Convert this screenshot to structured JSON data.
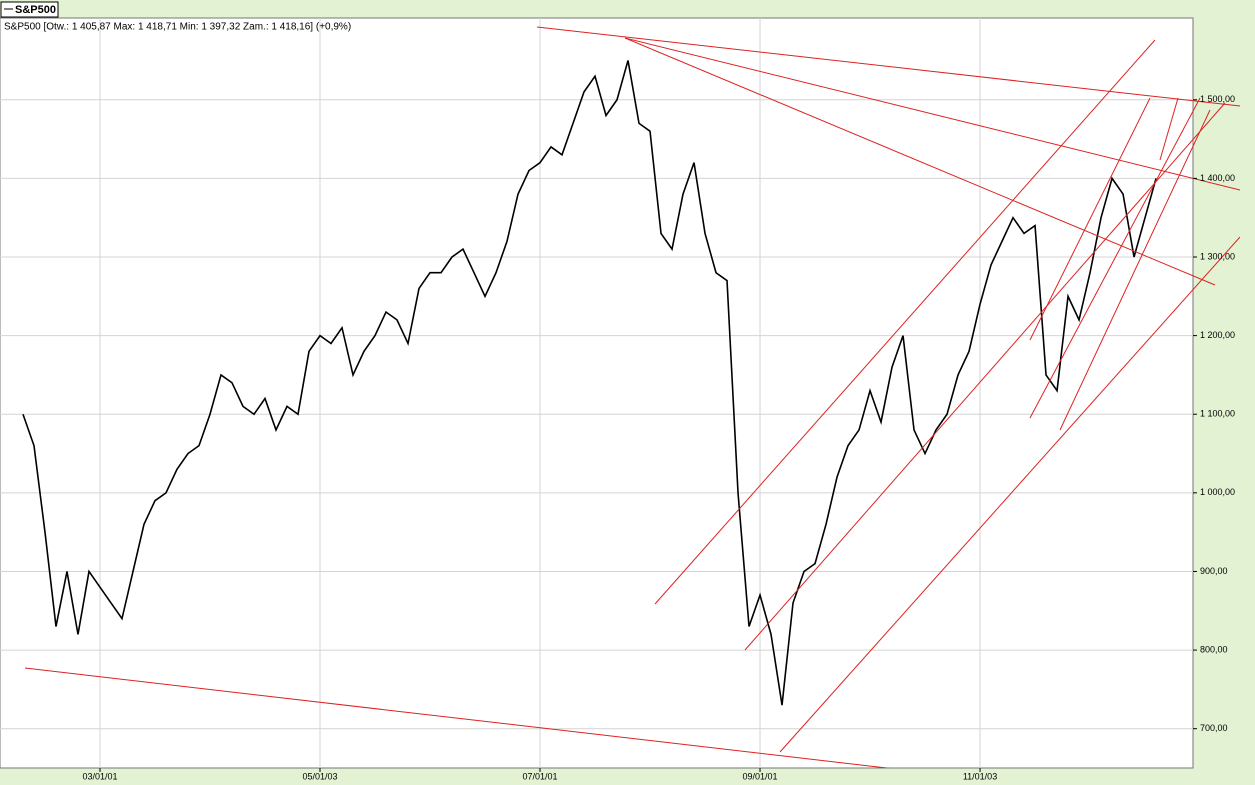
{
  "chart_data": {
    "type": "line",
    "legend": "S&P500",
    "subtitle": "S&P500 [Otw.: 1 405,87  Max: 1 418,71  Min: 1 397,32  Zam.: 1 418,16] (+0,9%)",
    "color": "#000000",
    "grid": true,
    "values": [
      1100,
      1060,
      950,
      830,
      900,
      820,
      900,
      880,
      860,
      840,
      900,
      960,
      990,
      1000,
      1030,
      1050,
      1060,
      1100,
      1150,
      1140,
      1110,
      1100,
      1120,
      1080,
      1110,
      1100,
      1180,
      1200,
      1190,
      1210,
      1150,
      1180,
      1200,
      1230,
      1220,
      1190,
      1260,
      1280,
      1280,
      1300,
      1310,
      1280,
      1250,
      1280,
      1320,
      1380,
      1410,
      1420,
      1440,
      1430,
      1470,
      1510,
      1530,
      1480,
      1500,
      1550,
      1470,
      1460,
      1330,
      1310,
      1380,
      1420,
      1330,
      1280,
      1270,
      1000,
      830,
      870,
      820,
      730,
      860,
      900,
      910,
      960,
      1020,
      1060,
      1080,
      1130,
      1090,
      1160,
      1200,
      1080,
      1050,
      1080,
      1100,
      1150,
      1180,
      1240,
      1290,
      1320,
      1350,
      1330,
      1340,
      1150,
      1130,
      1250,
      1220,
      1280,
      1350,
      1400,
      1380,
      1300,
      1350,
      1400
    ],
    "xlim": [
      -2.09,
      106.36
    ],
    "xticks": [
      {
        "value": 7,
        "label": "03/01/01"
      },
      {
        "value": 27,
        "label": "05/01/03"
      },
      {
        "value": 47,
        "label": "07/01/01"
      },
      {
        "value": 67,
        "label": "09/01/01"
      },
      {
        "value": 87,
        "label": "11/01/03"
      }
    ],
    "ylim": [
      650,
      1604
    ],
    "yticks": [
      {
        "value": 700,
        "label": "700,00"
      },
      {
        "value": 800,
        "label": "800,00"
      },
      {
        "value": 900,
        "label": "900,00"
      },
      {
        "value": 1000,
        "label": "1 000,00"
      },
      {
        "value": 1100,
        "label": "1 100,00"
      },
      {
        "value": 1200,
        "label": "1 200,00"
      },
      {
        "value": 1300,
        "label": "1 300,00"
      },
      {
        "value": 1400,
        "label": "1 400,00"
      },
      {
        "value": 1500,
        "label": "1 500,00"
      }
    ]
  }
}
